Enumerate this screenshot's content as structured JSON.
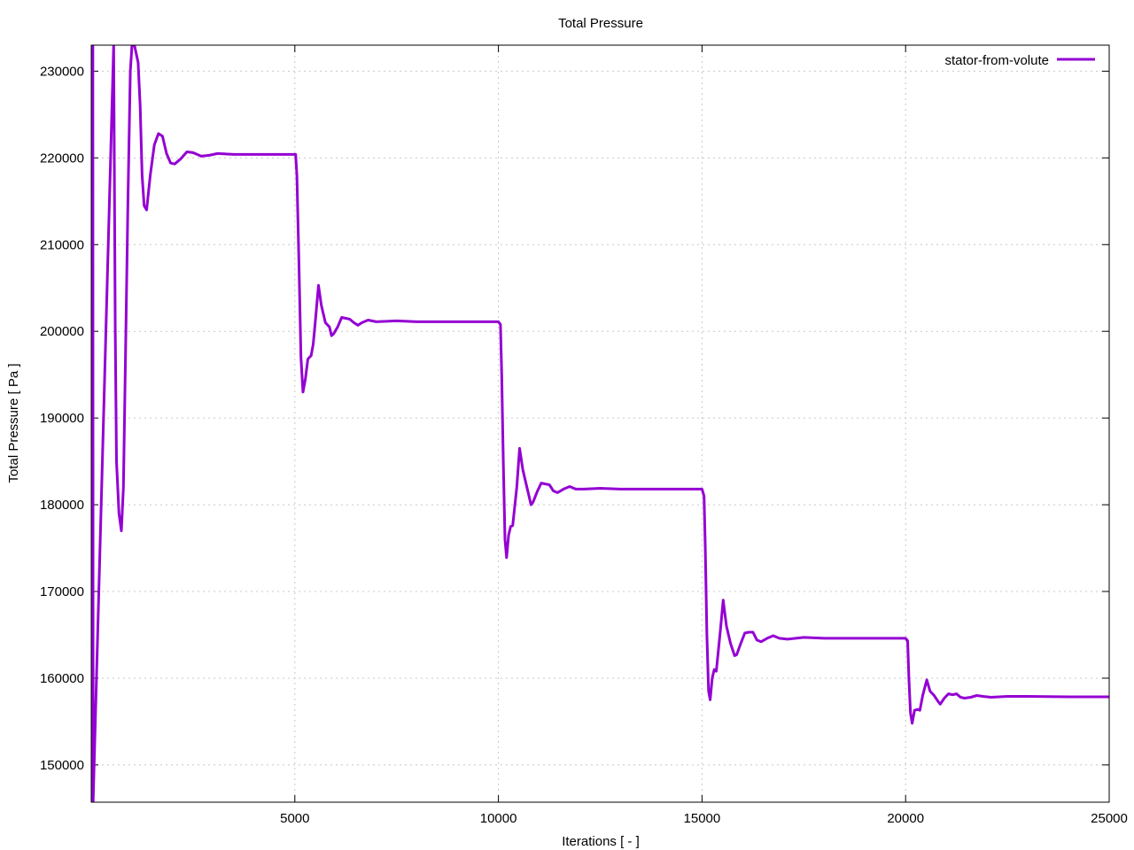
{
  "chart_data": {
    "type": "line",
    "title": "Total Pressure",
    "xlabel": "Iterations [ - ]",
    "ylabel": "Total Pressure [ Pa ]",
    "xlim": [
      0,
      25000
    ],
    "ylim": [
      145700,
      233000
    ],
    "xticks": [
      5000,
      10000,
      15000,
      20000,
      25000
    ],
    "yticks": [
      150000,
      160000,
      170000,
      180000,
      190000,
      200000,
      210000,
      220000,
      230000
    ],
    "grid": true,
    "legend": "top-right",
    "series": [
      {
        "name": "stator-from-volute",
        "color": "#9400d3",
        "points": [
          [
            20,
            145700
          ],
          [
            25,
            233000
          ],
          [
            40,
            233000
          ],
          [
            45,
            145700
          ],
          [
            550,
            233000
          ],
          [
            590,
            200000
          ],
          [
            620,
            185000
          ],
          [
            680,
            179000
          ],
          [
            740,
            177000
          ],
          [
            790,
            182000
          ],
          [
            850,
            200000
          ],
          [
            900,
            215000
          ],
          [
            960,
            230000
          ],
          [
            1000,
            233000
          ],
          [
            1060,
            233000
          ],
          [
            1150,
            231000
          ],
          [
            1200,
            226000
          ],
          [
            1250,
            218000
          ],
          [
            1300,
            214500
          ],
          [
            1360,
            214000
          ],
          [
            1450,
            218000
          ],
          [
            1550,
            221500
          ],
          [
            1650,
            222800
          ],
          [
            1750,
            222500
          ],
          [
            1850,
            220500
          ],
          [
            1950,
            219400
          ],
          [
            2050,
            219300
          ],
          [
            2200,
            219900
          ],
          [
            2350,
            220700
          ],
          [
            2500,
            220600
          ],
          [
            2700,
            220200
          ],
          [
            2900,
            220300
          ],
          [
            3100,
            220500
          ],
          [
            3500,
            220400
          ],
          [
            4000,
            220400
          ],
          [
            5000,
            220400
          ],
          [
            5020,
            220400
          ],
          [
            5050,
            218000
          ],
          [
            5100,
            208000
          ],
          [
            5150,
            197000
          ],
          [
            5200,
            193000
          ],
          [
            5260,
            194500
          ],
          [
            5320,
            196800
          ],
          [
            5400,
            197200
          ],
          [
            5450,
            198500
          ],
          [
            5500,
            201000
          ],
          [
            5580,
            205300
          ],
          [
            5650,
            203000
          ],
          [
            5750,
            201000
          ],
          [
            5850,
            200500
          ],
          [
            5900,
            199500
          ],
          [
            5950,
            199700
          ],
          [
            6050,
            200500
          ],
          [
            6150,
            201600
          ],
          [
            6250,
            201500
          ],
          [
            6350,
            201400
          ],
          [
            6450,
            201000
          ],
          [
            6550,
            200700
          ],
          [
            6650,
            201000
          ],
          [
            6800,
            201300
          ],
          [
            7000,
            201100
          ],
          [
            7500,
            201200
          ],
          [
            8000,
            201100
          ],
          [
            9000,
            201100
          ],
          [
            10000,
            201100
          ],
          [
            10050,
            200800
          ],
          [
            10080,
            195000
          ],
          [
            10120,
            185000
          ],
          [
            10160,
            176000
          ],
          [
            10200,
            173900
          ],
          [
            10250,
            176500
          ],
          [
            10300,
            177500
          ],
          [
            10350,
            177600
          ],
          [
            10450,
            182000
          ],
          [
            10520,
            186500
          ],
          [
            10600,
            184000
          ],
          [
            10700,
            182000
          ],
          [
            10800,
            180000
          ],
          [
            10850,
            180300
          ],
          [
            10950,
            181500
          ],
          [
            11050,
            182500
          ],
          [
            11150,
            182400
          ],
          [
            11250,
            182300
          ],
          [
            11350,
            181600
          ],
          [
            11450,
            181400
          ],
          [
            11600,
            181800
          ],
          [
            11750,
            182100
          ],
          [
            11900,
            181800
          ],
          [
            12100,
            181800
          ],
          [
            12500,
            181900
          ],
          [
            13000,
            181800
          ],
          [
            14000,
            181800
          ],
          [
            15000,
            181800
          ],
          [
            15050,
            181000
          ],
          [
            15080,
            175000
          ],
          [
            15120,
            165000
          ],
          [
            15160,
            158500
          ],
          [
            15200,
            157500
          ],
          [
            15250,
            160000
          ],
          [
            15300,
            161000
          ],
          [
            15350,
            160800
          ],
          [
            15450,
            165500
          ],
          [
            15520,
            169000
          ],
          [
            15600,
            166000
          ],
          [
            15700,
            164000
          ],
          [
            15800,
            162600
          ],
          [
            15850,
            162700
          ],
          [
            15950,
            164000
          ],
          [
            16050,
            165200
          ],
          [
            16150,
            165300
          ],
          [
            16250,
            165300
          ],
          [
            16350,
            164400
          ],
          [
            16450,
            164200
          ],
          [
            16600,
            164600
          ],
          [
            16750,
            164900
          ],
          [
            16900,
            164600
          ],
          [
            17100,
            164500
          ],
          [
            17500,
            164700
          ],
          [
            18000,
            164600
          ],
          [
            19000,
            164600
          ],
          [
            20000,
            164600
          ],
          [
            20050,
            164300
          ],
          [
            20080,
            160000
          ],
          [
            20120,
            156000
          ],
          [
            20160,
            154800
          ],
          [
            20220,
            156300
          ],
          [
            20300,
            156400
          ],
          [
            20350,
            156300
          ],
          [
            20420,
            158000
          ],
          [
            20520,
            159800
          ],
          [
            20600,
            158500
          ],
          [
            20700,
            158000
          ],
          [
            20800,
            157300
          ],
          [
            20850,
            157000
          ],
          [
            20950,
            157700
          ],
          [
            21050,
            158200
          ],
          [
            21150,
            158100
          ],
          [
            21250,
            158200
          ],
          [
            21350,
            157800
          ],
          [
            21450,
            157700
          ],
          [
            21600,
            157800
          ],
          [
            21750,
            158000
          ],
          [
            21900,
            157900
          ],
          [
            22100,
            157800
          ],
          [
            22500,
            157900
          ],
          [
            23000,
            157900
          ],
          [
            24000,
            157850
          ],
          [
            25000,
            157850
          ]
        ]
      }
    ]
  }
}
